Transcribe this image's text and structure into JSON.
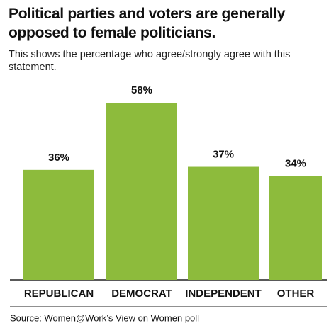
{
  "chart_data": {
    "type": "bar",
    "title": "Political parties and voters are generally opposed to female politicians.",
    "subtitle": "This shows the percentage who agree/strongly agree with this statement.",
    "categories": [
      "REPUBLICAN",
      "DEMOCRAT",
      "INDEPENDENT",
      "OTHER"
    ],
    "values": [
      36,
      58,
      37,
      34
    ],
    "value_labels": [
      "36%",
      "58%",
      "37%",
      "34%"
    ],
    "color": "#8dbb3c",
    "source": "Source: Women@Work’s View on Women poll"
  }
}
